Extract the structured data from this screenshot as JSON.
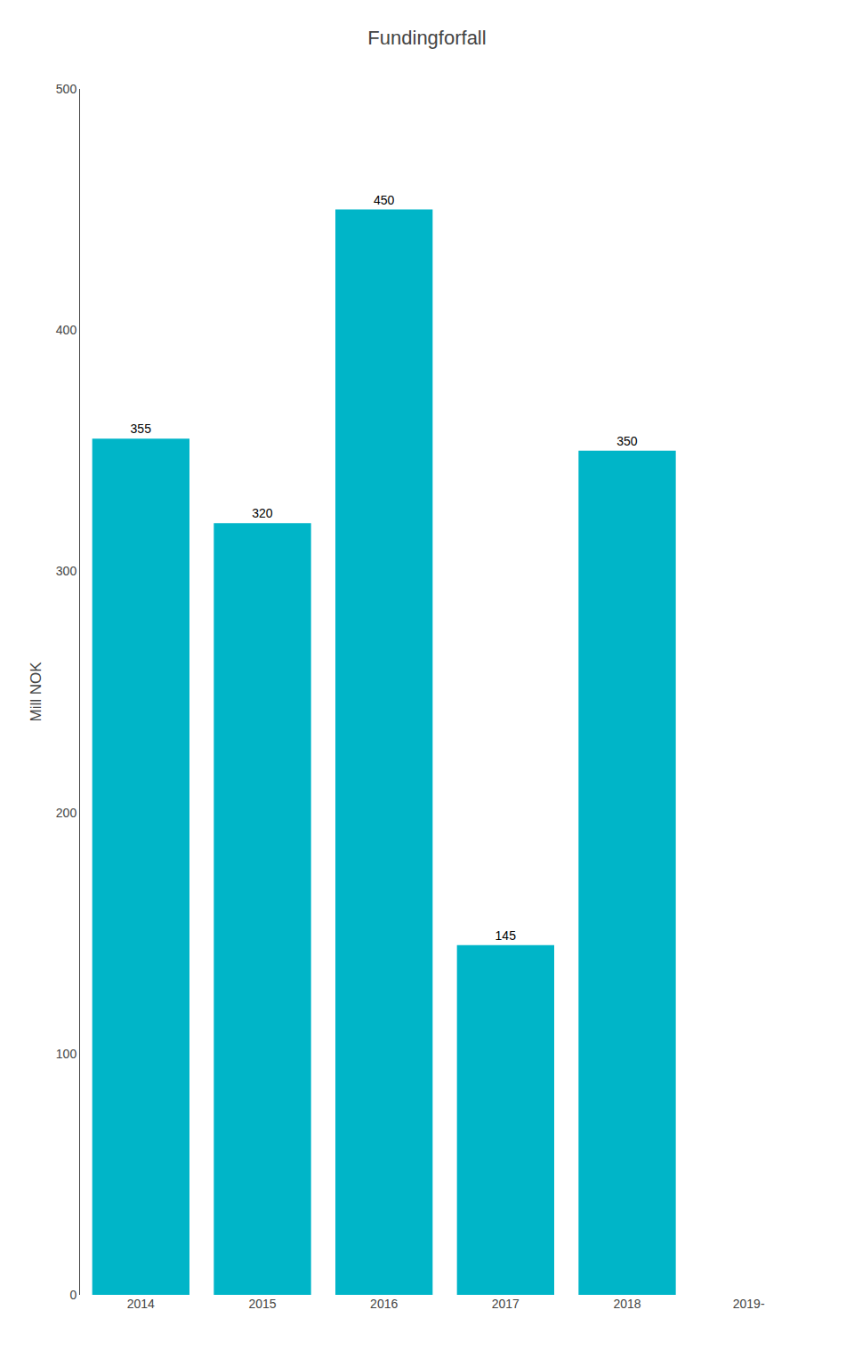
{
  "chart_data": {
    "type": "bar",
    "title": "Fundingforfall",
    "categories": [
      "2014",
      "2015",
      "2016",
      "2017",
      "2018",
      "2019-"
    ],
    "values": [
      355,
      320,
      450,
      145,
      350,
      0
    ],
    "color": "#00B5C8",
    "ylabel": "Mill NOK",
    "ylim": [
      0,
      500
    ],
    "yticks": [
      0,
      100,
      200,
      300,
      400,
      500
    ],
    "data_labels": true,
    "grid": false
  }
}
